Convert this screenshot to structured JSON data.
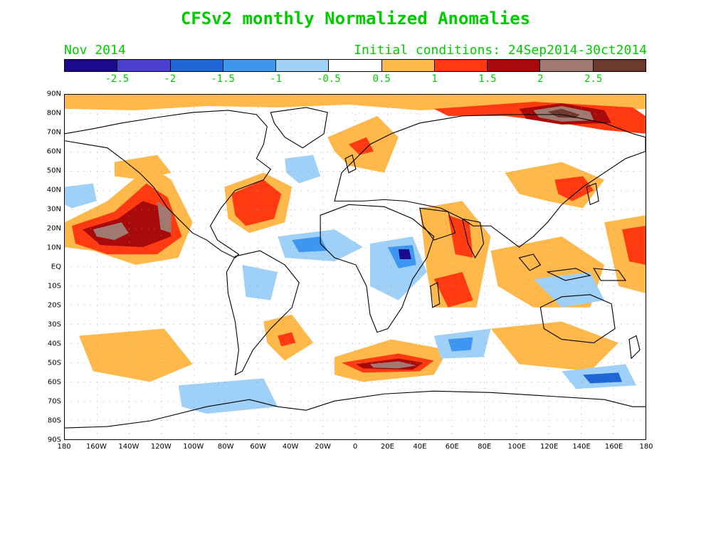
{
  "title": "CFSv2 monthly Normalized Anomalies",
  "month_label": "Nov 2014",
  "initial_conditions": "Initial conditions: 24Sep2014-30ct2014",
  "text_color": "#00cc00",
  "colorbar": {
    "colors": [
      "#1c0a8c",
      "#4a3fd0",
      "#1f66d6",
      "#3d97f0",
      "#9fd0f7",
      "#ffffff",
      "#ffb84a",
      "#ff3a10",
      "#a80a0a",
      "#a07a70",
      "#6e3a2e"
    ],
    "labels": [
      "-2.5",
      "-2",
      "-1.5",
      "-1",
      "-0.5",
      "0.5",
      "1",
      "1.5",
      "2",
      "2.5"
    ]
  },
  "lat_labels": [
    "90N",
    "80N",
    "70N",
    "60N",
    "50N",
    "40N",
    "30N",
    "20N",
    "10N",
    "EQ",
    "10S",
    "20S",
    "30S",
    "40S",
    "50S",
    "60S",
    "70S",
    "80S",
    "90S"
  ],
  "lon_labels": [
    "180",
    "160W",
    "140W",
    "120W",
    "100W",
    "80W",
    "60W",
    "40W",
    "20W",
    "0",
    "20E",
    "40E",
    "60E",
    "80E",
    "100E",
    "120E",
    "140E",
    "160E",
    "180"
  ]
}
